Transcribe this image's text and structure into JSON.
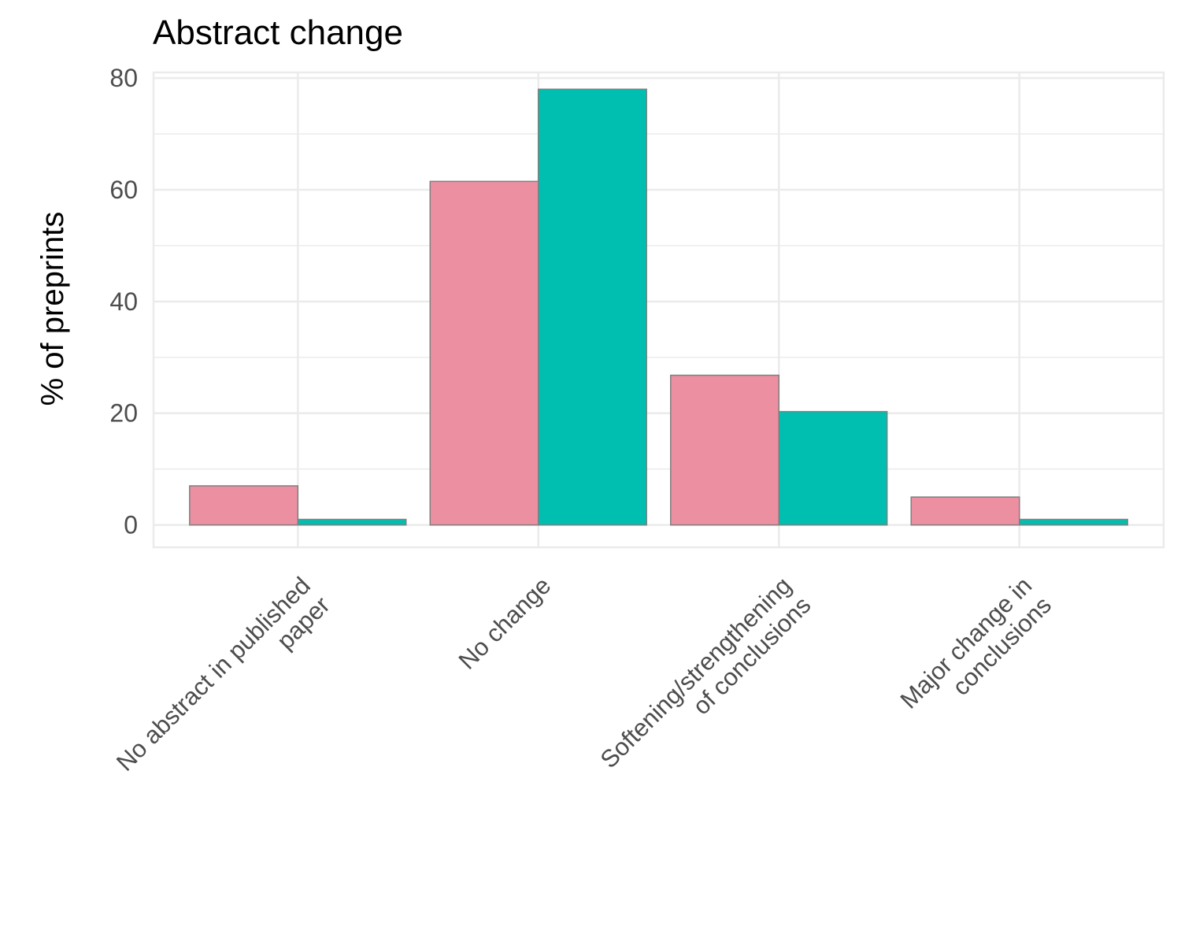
{
  "chart_data": {
    "type": "bar",
    "title": "Abstract change",
    "xlabel": "",
    "ylabel": "% of preprints",
    "ylim": [
      -4,
      81
    ],
    "yticks": [
      0,
      20,
      40,
      60,
      80
    ],
    "grid": true,
    "legend": "none",
    "categories": [
      [
        "No abstract in published",
        "paper"
      ],
      [
        "No change"
      ],
      [
        "Softening/strengthening",
        "of conclusions"
      ],
      [
        "Major change in",
        "conclusions"
      ]
    ],
    "series": [
      {
        "values": [
          7,
          61.5,
          26.8,
          5
        ],
        "color": "#eb8fa1"
      },
      {
        "values": [
          1,
          78,
          20.3,
          1
        ],
        "color": "#00bfb0"
      }
    ],
    "bar_outline_color": "#808080",
    "grid_color": "#ebebeb"
  }
}
